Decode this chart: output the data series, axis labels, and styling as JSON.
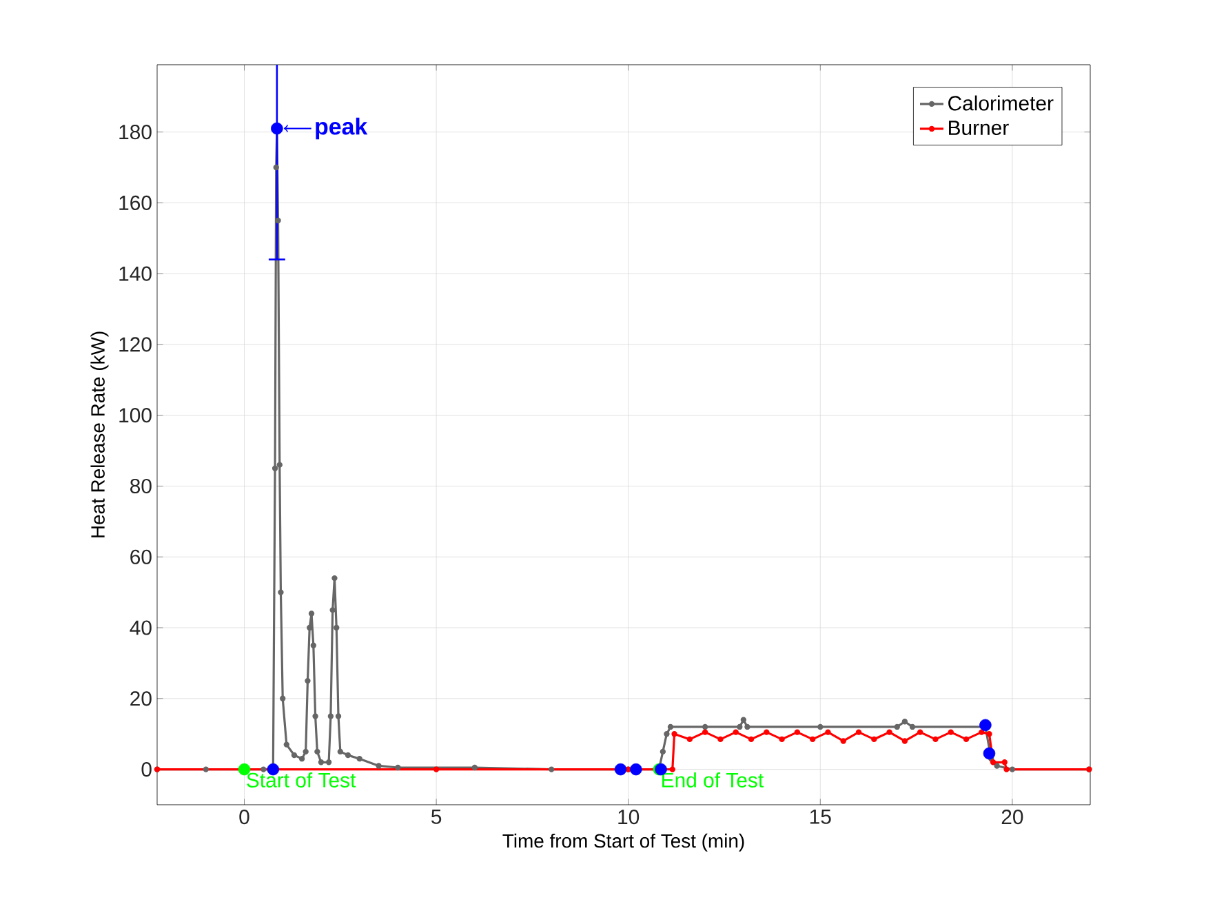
{
  "chart_data": {
    "type": "line",
    "xlabel": "Time from Start of Test (min)",
    "ylabel": "Heat Release Rate (kW)",
    "xlim": [
      -2.27,
      22.03
    ],
    "ylim": [
      -10,
      199
    ],
    "xticks": [
      0,
      5,
      10,
      15,
      20
    ],
    "yticks": [
      0,
      20,
      40,
      60,
      80,
      100,
      120,
      140,
      160,
      180
    ],
    "grid": true,
    "legend": "top right",
    "marker": "circle",
    "series": [
      {
        "name": "Calorimeter",
        "color": "#666666",
        "x": [
          -2.27,
          -1,
          0,
          0.5,
          0.75,
          0.8,
          0.83,
          0.85,
          0.88,
          0.92,
          0.95,
          1.0,
          1.1,
          1.3,
          1.5,
          1.6,
          1.65,
          1.7,
          1.75,
          1.8,
          1.85,
          1.9,
          2.0,
          2.2,
          2.25,
          2.3,
          2.35,
          2.4,
          2.45,
          2.5,
          2.7,
          3.0,
          3.5,
          4,
          6,
          8,
          10,
          10.8,
          10.9,
          11.0,
          11.1,
          12,
          12.9,
          13,
          13.1,
          15,
          17,
          17.2,
          17.4,
          19.3,
          19.45,
          19.6,
          20,
          22
        ],
        "values": [
          0,
          0,
          0,
          0,
          0,
          85,
          170,
          181,
          155,
          86,
          50,
          20,
          7,
          4,
          3,
          5,
          25,
          40,
          44,
          35,
          15,
          5,
          2,
          2,
          15,
          45,
          54,
          40,
          15,
          5,
          4,
          3,
          1,
          0.5,
          0.5,
          0,
          0,
          0,
          5,
          10,
          12,
          12,
          12,
          14,
          12,
          12,
          12,
          13.5,
          12,
          12,
          3,
          1,
          0,
          0
        ]
      },
      {
        "name": "Burner",
        "color": "#ff0000",
        "x": [
          -2.27,
          0,
          5,
          10,
          11.15,
          11.2,
          11.6,
          12,
          12.4,
          12.8,
          13.2,
          13.6,
          14,
          14.4,
          14.8,
          15.2,
          15.6,
          16,
          16.4,
          16.8,
          17.2,
          17.6,
          18,
          18.4,
          18.8,
          19.2,
          19.4,
          19.5,
          19.8,
          19.85,
          22
        ],
        "values": [
          0,
          0,
          0,
          0,
          0,
          10,
          8.5,
          10.5,
          8.5,
          10.5,
          8.5,
          10.5,
          8.5,
          10.5,
          8.5,
          10.5,
          8,
          10.5,
          8.5,
          10.5,
          8,
          10.5,
          8.5,
          10.5,
          8.5,
          10.5,
          10,
          2,
          2,
          0,
          0
        ]
      },
      {
        "type": "scatter",
        "color": "#00ff00",
        "x": [
          0,
          10.8
        ],
        "values": [
          0,
          0
        ]
      },
      {
        "type": "scatter",
        "color": "#0000ff",
        "x": [
          0.75,
          0.85,
          9.8,
          10.2,
          10.85,
          19.3,
          19.4
        ],
        "values": [
          0,
          181,
          0,
          0,
          0,
          12.5,
          4.5
        ],
        "errors": [
          null,
          [
            144,
            199
          ],
          null,
          null,
          null,
          null,
          null
        ]
      }
    ],
    "annotations": [
      {
        "text": "peak",
        "x": 0.85,
        "y": 181
      },
      {
        "text": "Start of Test",
        "x": 0,
        "y": 0
      },
      {
        "text": "End of Test",
        "x": 10.8,
        "y": 0
      }
    ]
  }
}
